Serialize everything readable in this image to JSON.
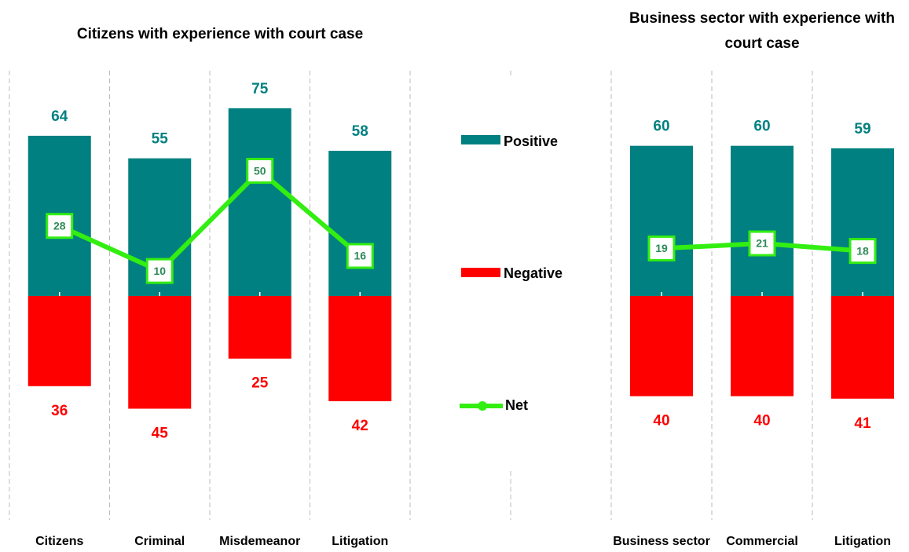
{
  "chart_data": [
    {
      "type": "bar",
      "title": "Citizens with experience with court case",
      "categories": [
        "Citizens",
        "Criminal",
        "Misdemeanor",
        "Litigation"
      ],
      "series": [
        {
          "name": "Positive",
          "color": "#008080",
          "values": [
            64,
            55,
            75,
            58
          ]
        },
        {
          "name": "Negative",
          "color": "#ff0000",
          "values": [
            -36,
            -45,
            -25,
            -42
          ],
          "value_labels": [
            "36",
            "45",
            "25",
            "42"
          ]
        },
        {
          "name": "Net",
          "color": "#33ee11",
          "type": "line",
          "values": [
            28,
            10,
            50,
            16
          ]
        }
      ],
      "ylim": [
        -90,
        90
      ]
    },
    {
      "type": "bar",
      "title": "Business sector with experience with court case",
      "categories": [
        "Business sector",
        "Commercial",
        "Litigation"
      ],
      "series": [
        {
          "name": "Positive",
          "color": "#008080",
          "values": [
            60,
            60,
            59
          ]
        },
        {
          "name": "Negative",
          "color": "#ff0000",
          "values": [
            -40,
            -40,
            -41
          ],
          "value_labels": [
            "40",
            "40",
            "41"
          ]
        },
        {
          "name": "Net",
          "color": "#33ee11",
          "type": "line",
          "values": [
            19,
            21,
            18
          ]
        }
      ],
      "ylim": [
        -90,
        90
      ]
    }
  ]
}
